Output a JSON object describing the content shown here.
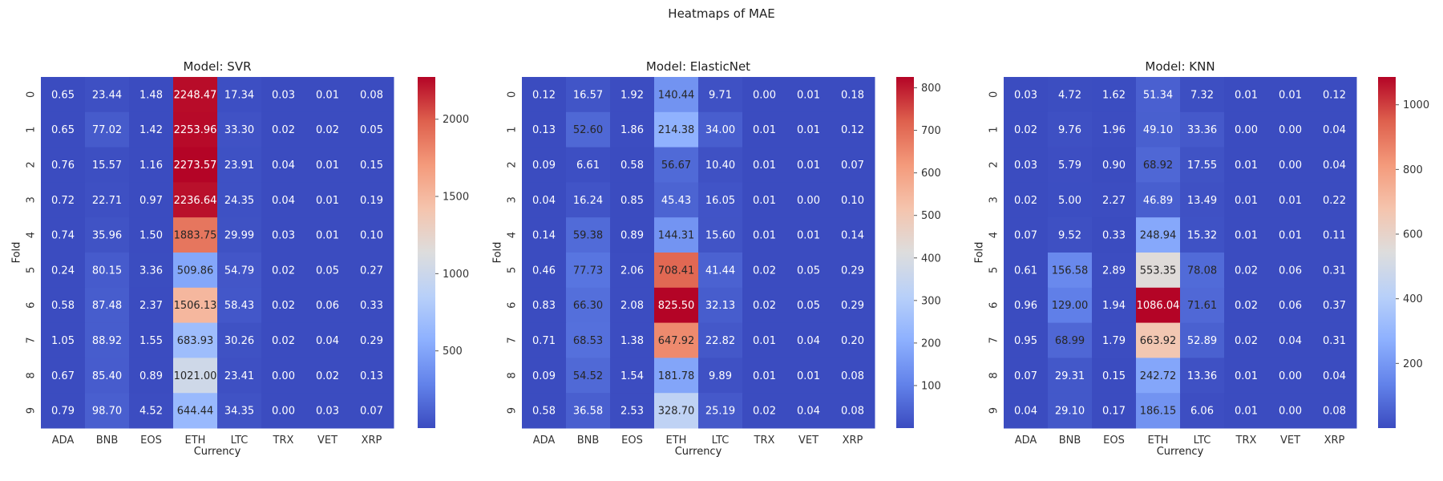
{
  "suptitle": "Heatmaps of MAE",
  "chart_data": [
    {
      "type": "heatmap",
      "title": "Model: SVR",
      "xlabel": "Currency",
      "ylabel": "Fold",
      "x_categories": [
        "ADA",
        "BNB",
        "EOS",
        "ETH",
        "LTC",
        "TRX",
        "VET",
        "XRP"
      ],
      "y_categories": [
        "0",
        "1",
        "2",
        "3",
        "4",
        "5",
        "6",
        "7",
        "8",
        "9"
      ],
      "values": [
        [
          "0.65",
          "23.44",
          "1.48",
          "2248.47",
          "17.34",
          "0.03",
          "0.01",
          "0.08"
        ],
        [
          "0.65",
          "77.02",
          "1.42",
          "2253.96",
          "33.30",
          "0.02",
          "0.02",
          "0.05"
        ],
        [
          "0.76",
          "15.57",
          "1.16",
          "2273.57",
          "23.91",
          "0.04",
          "0.01",
          "0.15"
        ],
        [
          "0.72",
          "22.71",
          "0.97",
          "2236.64",
          "24.35",
          "0.04",
          "0.01",
          "0.19"
        ],
        [
          "0.74",
          "35.96",
          "1.50",
          "1883.75",
          "29.99",
          "0.03",
          "0.01",
          "0.10"
        ],
        [
          "0.24",
          "80.15",
          "3.36",
          "509.86",
          "54.79",
          "0.02",
          "0.05",
          "0.27"
        ],
        [
          "0.58",
          "87.48",
          "2.37",
          "1506.13",
          "58.43",
          "0.02",
          "0.06",
          "0.33"
        ],
        [
          "1.05",
          "88.92",
          "1.55",
          "683.93",
          "30.26",
          "0.02",
          "0.04",
          "0.29"
        ],
        [
          "0.67",
          "85.40",
          "0.89",
          "1021.00",
          "23.41",
          "0.00",
          "0.02",
          "0.13"
        ],
        [
          "0.79",
          "98.70",
          "4.52",
          "644.44",
          "34.35",
          "0.00",
          "0.03",
          "0.07"
        ]
      ],
      "colormap": "coolwarm",
      "color_range": [
        0,
        2273.57
      ],
      "colorbar_ticks": [
        "500",
        "1000",
        "1500",
        "2000"
      ]
    },
    {
      "type": "heatmap",
      "title": "Model: ElasticNet",
      "xlabel": "Currency",
      "ylabel": "Fold",
      "x_categories": [
        "ADA",
        "BNB",
        "EOS",
        "ETH",
        "LTC",
        "TRX",
        "VET",
        "XRP"
      ],
      "y_categories": [
        "0",
        "1",
        "2",
        "3",
        "4",
        "5",
        "6",
        "7",
        "8",
        "9"
      ],
      "values": [
        [
          "0.12",
          "16.57",
          "1.92",
          "140.44",
          "9.71",
          "0.00",
          "0.01",
          "0.18"
        ],
        [
          "0.13",
          "52.60",
          "1.86",
          "214.38",
          "34.00",
          "0.01",
          "0.01",
          "0.12"
        ],
        [
          "0.09",
          "6.61",
          "0.58",
          "56.67",
          "10.40",
          "0.01",
          "0.01",
          "0.07"
        ],
        [
          "0.04",
          "16.24",
          "0.85",
          "45.43",
          "16.05",
          "0.01",
          "0.00",
          "0.10"
        ],
        [
          "0.14",
          "59.38",
          "0.89",
          "144.31",
          "15.60",
          "0.01",
          "0.01",
          "0.14"
        ],
        [
          "0.46",
          "77.73",
          "2.06",
          "708.41",
          "41.44",
          "0.02",
          "0.05",
          "0.29"
        ],
        [
          "0.83",
          "66.30",
          "2.08",
          "825.50",
          "32.13",
          "0.02",
          "0.05",
          "0.29"
        ],
        [
          "0.71",
          "68.53",
          "1.38",
          "647.92",
          "22.82",
          "0.01",
          "0.04",
          "0.20"
        ],
        [
          "0.09",
          "54.52",
          "1.54",
          "181.78",
          "9.89",
          "0.01",
          "0.01",
          "0.08"
        ],
        [
          "0.58",
          "36.58",
          "2.53",
          "328.70",
          "25.19",
          "0.02",
          "0.04",
          "0.08"
        ]
      ],
      "colormap": "coolwarm",
      "color_range": [
        0,
        825.5
      ],
      "colorbar_ticks": [
        "100",
        "200",
        "300",
        "400",
        "500",
        "600",
        "700",
        "800"
      ]
    },
    {
      "type": "heatmap",
      "title": "Model: KNN",
      "xlabel": "Currency",
      "ylabel": "Fold",
      "x_categories": [
        "ADA",
        "BNB",
        "EOS",
        "ETH",
        "LTC",
        "TRX",
        "VET",
        "XRP"
      ],
      "y_categories": [
        "0",
        "1",
        "2",
        "3",
        "4",
        "5",
        "6",
        "7",
        "8",
        "9"
      ],
      "values": [
        [
          "0.03",
          "4.72",
          "1.62",
          "51.34",
          "7.32",
          "0.01",
          "0.01",
          "0.12"
        ],
        [
          "0.02",
          "9.76",
          "1.96",
          "49.10",
          "33.36",
          "0.00",
          "0.00",
          "0.04"
        ],
        [
          "0.03",
          "5.79",
          "0.90",
          "68.92",
          "17.55",
          "0.01",
          "0.00",
          "0.04"
        ],
        [
          "0.02",
          "5.00",
          "2.27",
          "46.89",
          "13.49",
          "0.01",
          "0.01",
          "0.22"
        ],
        [
          "0.07",
          "9.52",
          "0.33",
          "248.94",
          "15.32",
          "0.01",
          "0.01",
          "0.11"
        ],
        [
          "0.61",
          "156.58",
          "2.89",
          "553.35",
          "78.08",
          "0.02",
          "0.06",
          "0.31"
        ],
        [
          "0.96",
          "129.00",
          "1.94",
          "1086.04",
          "71.61",
          "0.02",
          "0.06",
          "0.37"
        ],
        [
          "0.95",
          "68.99",
          "1.79",
          "663.92",
          "52.89",
          "0.02",
          "0.04",
          "0.31"
        ],
        [
          "0.07",
          "29.31",
          "0.15",
          "242.72",
          "13.36",
          "0.01",
          "0.00",
          "0.04"
        ],
        [
          "0.04",
          "29.10",
          "0.17",
          "186.15",
          "6.06",
          "0.01",
          "0.00",
          "0.08"
        ]
      ],
      "colormap": "coolwarm",
      "color_range": [
        0,
        1086.04
      ],
      "colorbar_ticks": [
        "200",
        "400",
        "600",
        "800",
        "1000"
      ]
    }
  ]
}
